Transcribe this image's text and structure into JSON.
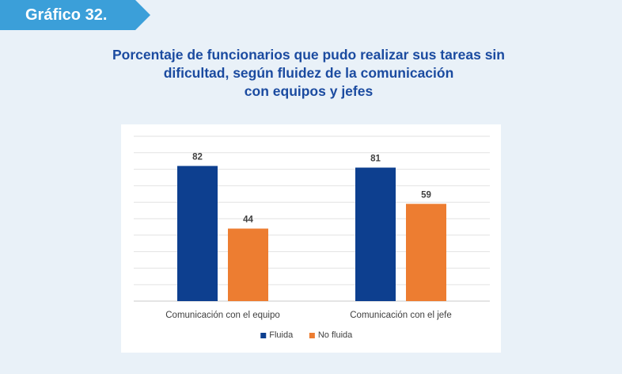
{
  "header": {
    "tag_label": "Gráfico 32.",
    "title_lines": [
      "Porcentaje de funcionarios que pudo realizar sus tareas sin",
      "dificultad, según fluidez de la comunicación",
      "con equipos y jefes"
    ]
  },
  "colors": {
    "tag": "#3b9fd9",
    "title": "#1b4ba0",
    "fluida": "#0d3f8f",
    "no_fluida": "#ed7d31"
  },
  "chart_data": {
    "type": "bar",
    "title": "Porcentaje de funcionarios que pudo realizar sus tareas sin dificultad, según fluidez de la comunicación con equipos y jefes",
    "categories": [
      "Comunicación con el equipo",
      "Comunicación con el jefe"
    ],
    "series": [
      {
        "name": "Fluida",
        "values": [
          82,
          81
        ]
      },
      {
        "name": "No fluida",
        "values": [
          44,
          59
        ]
      }
    ],
    "ylim": [
      0,
      100
    ],
    "ytick_step": 10,
    "grid": true,
    "legend": "bottom",
    "data_labels": true
  }
}
